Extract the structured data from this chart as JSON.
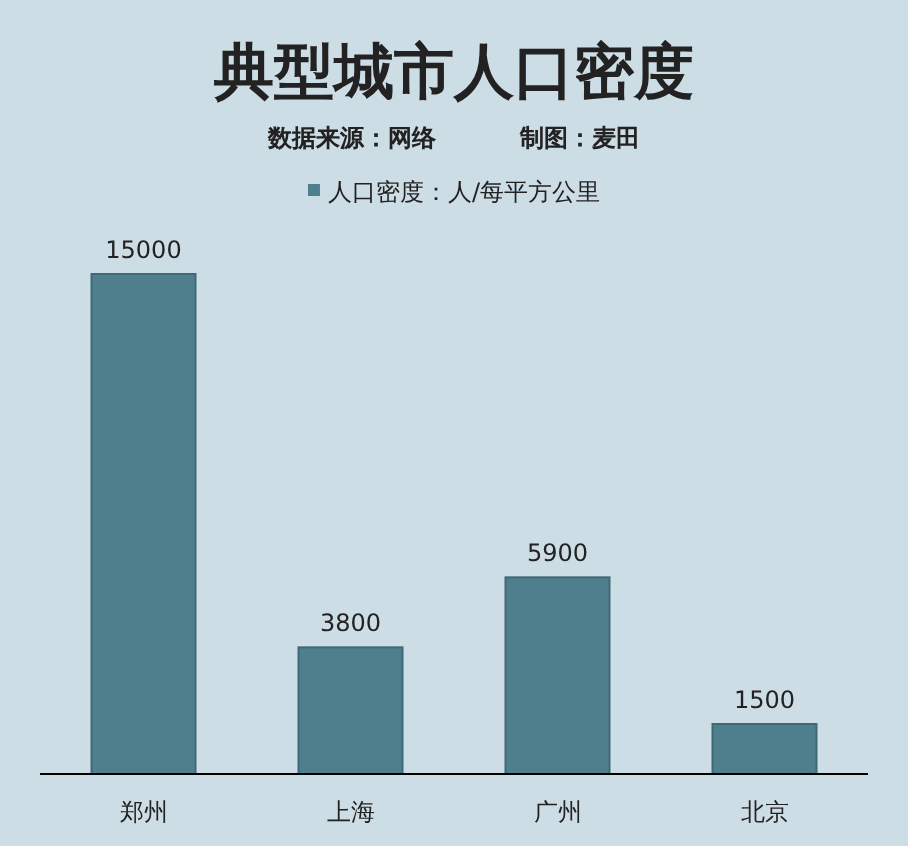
{
  "chart_data": {
    "type": "bar",
    "title": "典型城市人口密度",
    "subtitle": "数据来源：网络          制图：麦田",
    "categories": [
      "郑州",
      "上海",
      "广州",
      "北京"
    ],
    "series": [
      {
        "name": "人口密度：人/每平方公里",
        "color": "#4f7f8c",
        "values": [
          15000,
          3800,
          5900,
          1500
        ]
      }
    ],
    "data_labels": true,
    "legend": "top"
  }
}
